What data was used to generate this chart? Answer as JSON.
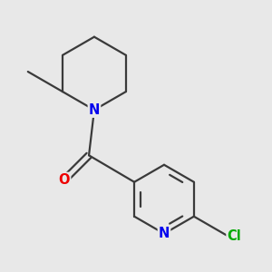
{
  "background_color": "#e8e8e8",
  "bond_color": "#3a3a3a",
  "bond_width": 1.6,
  "atom_colors": {
    "N": "#0000ee",
    "O": "#ee0000",
    "Cl": "#00aa00",
    "C": "#3a3a3a"
  },
  "font_size_atoms": 10.5
}
